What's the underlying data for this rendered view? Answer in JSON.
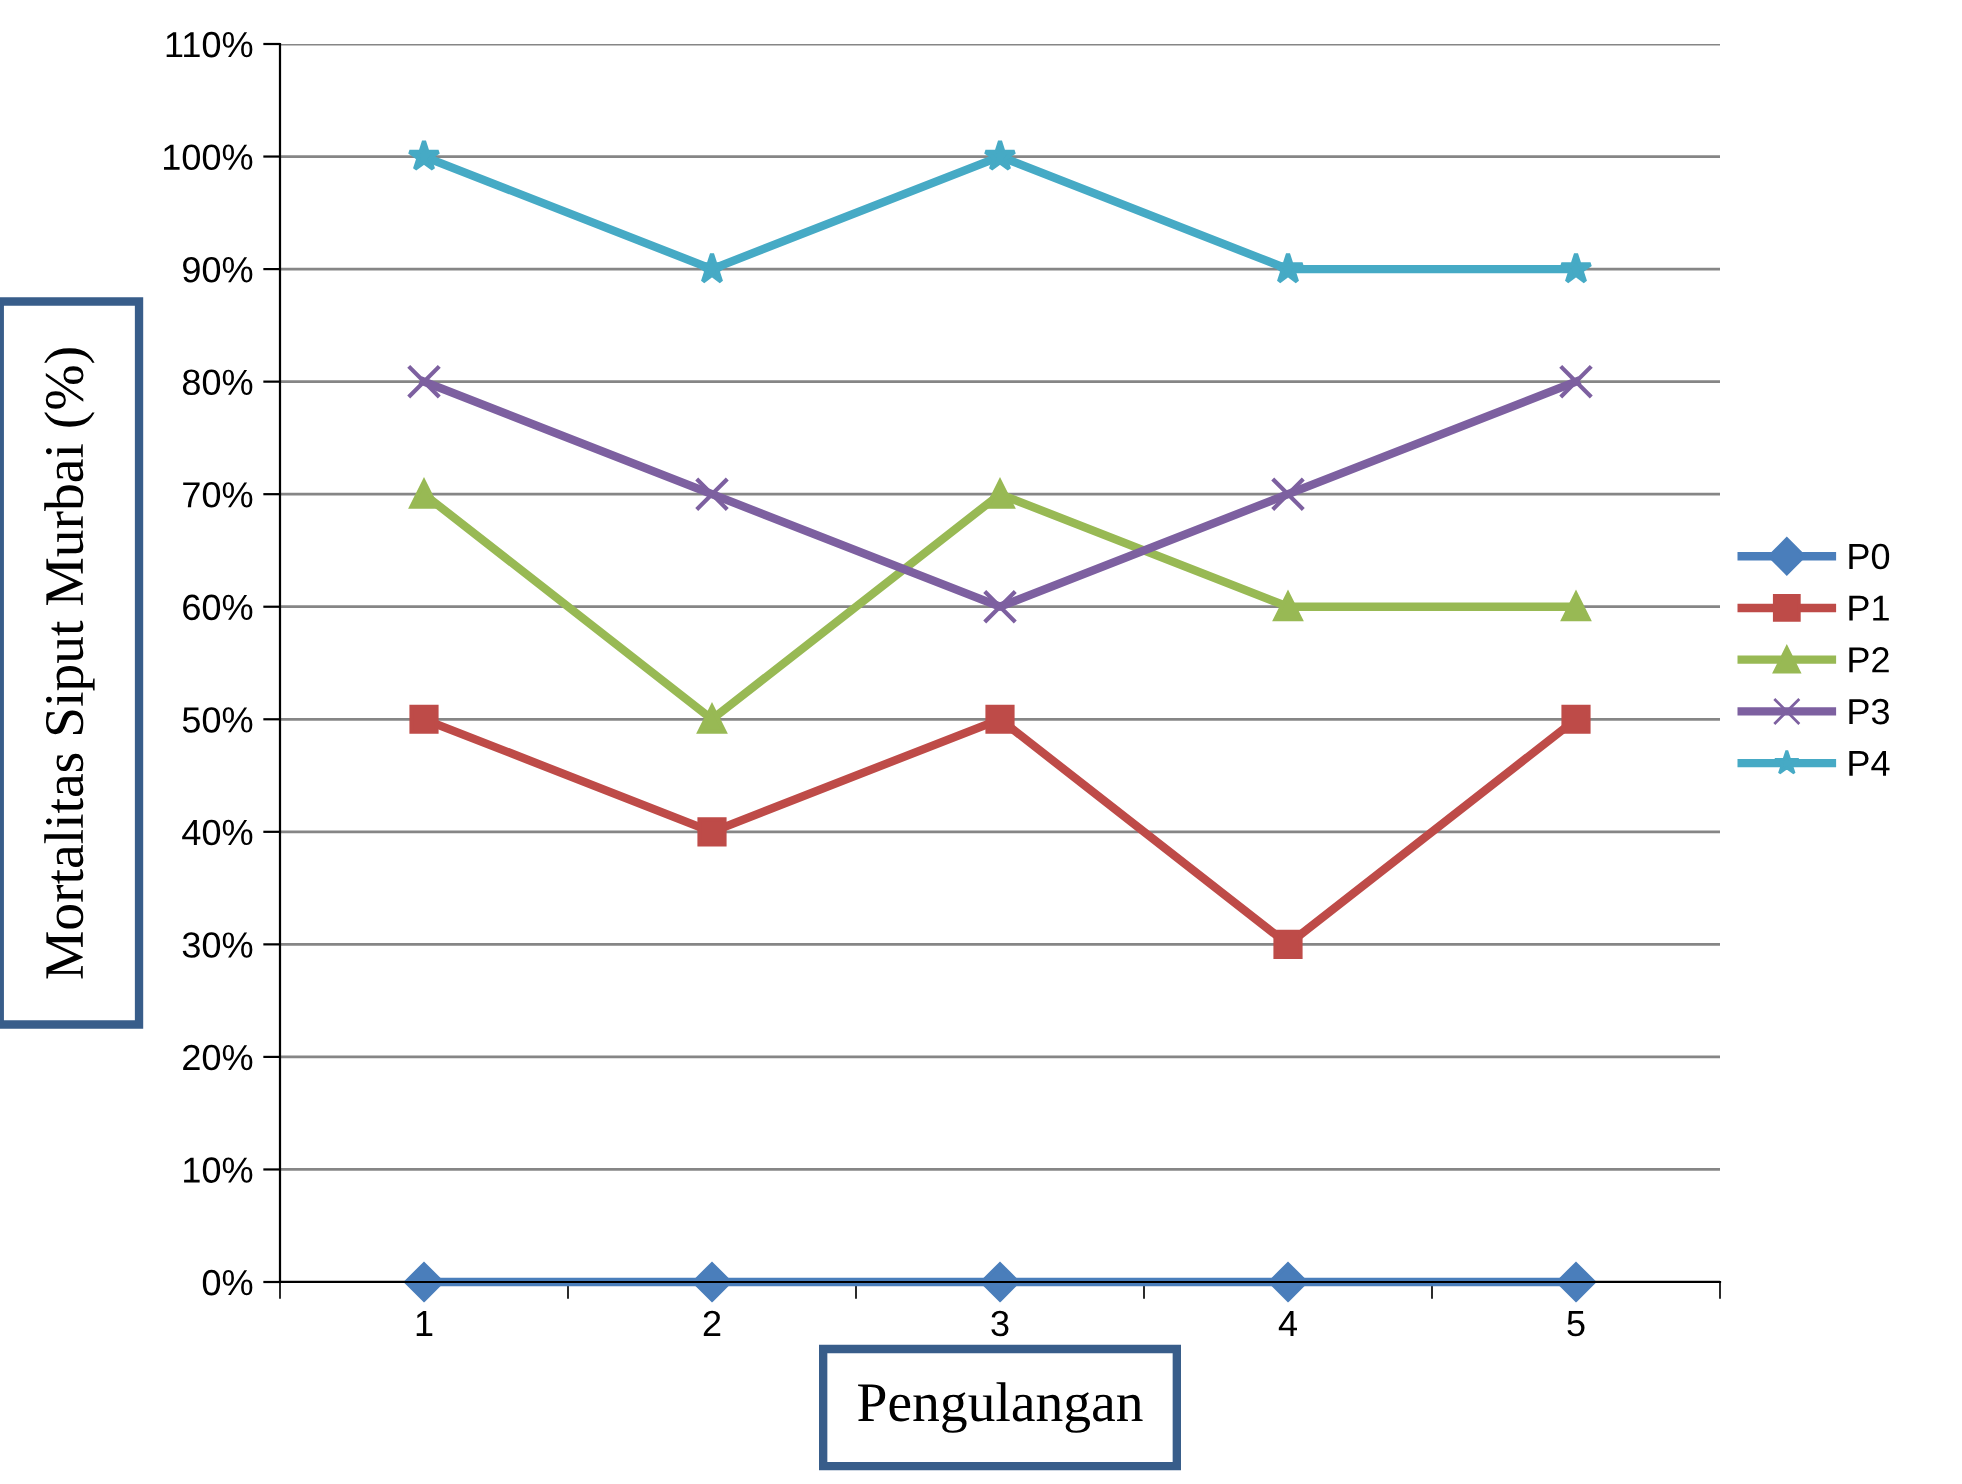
{
  "chart_data": {
    "type": "line",
    "xlabel": "Pengulangan",
    "ylabel": "Mortalitas Siput Murbai (%)",
    "categories": [
      "1",
      "2",
      "3",
      "4",
      "5"
    ],
    "series": [
      {
        "name": "P0",
        "color": "#4a7ebb",
        "marker": "diamond",
        "values": [
          0,
          0,
          0,
          0,
          0
        ]
      },
      {
        "name": "P1",
        "color": "#be4b48",
        "marker": "square",
        "values": [
          50,
          40,
          50,
          30,
          50
        ]
      },
      {
        "name": "P2",
        "color": "#98b954",
        "marker": "triangle",
        "values": [
          70,
          50,
          70,
          60,
          60
        ]
      },
      {
        "name": "P3",
        "color": "#7d60a0",
        "marker": "cross",
        "values": [
          80,
          70,
          60,
          70,
          80
        ]
      },
      {
        "name": "P4",
        "color": "#46aac5",
        "marker": "star",
        "values": [
          100,
          90,
          100,
          90,
          90
        ]
      }
    ],
    "ylim": [
      0,
      110
    ],
    "yticks": [
      {
        "value": 0,
        "label": "0%"
      },
      {
        "value": 10,
        "label": "10%"
      },
      {
        "value": 20,
        "label": "20%"
      },
      {
        "value": 30,
        "label": "30%"
      },
      {
        "value": 40,
        "label": "40%"
      },
      {
        "value": 50,
        "label": "50%"
      },
      {
        "value": 60,
        "label": "60%"
      },
      {
        "value": 70,
        "label": "70%"
      },
      {
        "value": 80,
        "label": "80%"
      },
      {
        "value": 90,
        "label": "90%"
      },
      {
        "value": 100,
        "label": "100%"
      },
      {
        "value": 110,
        "label": "110%"
      }
    ],
    "grid": "y",
    "legend": "right",
    "line_style": "solid"
  }
}
